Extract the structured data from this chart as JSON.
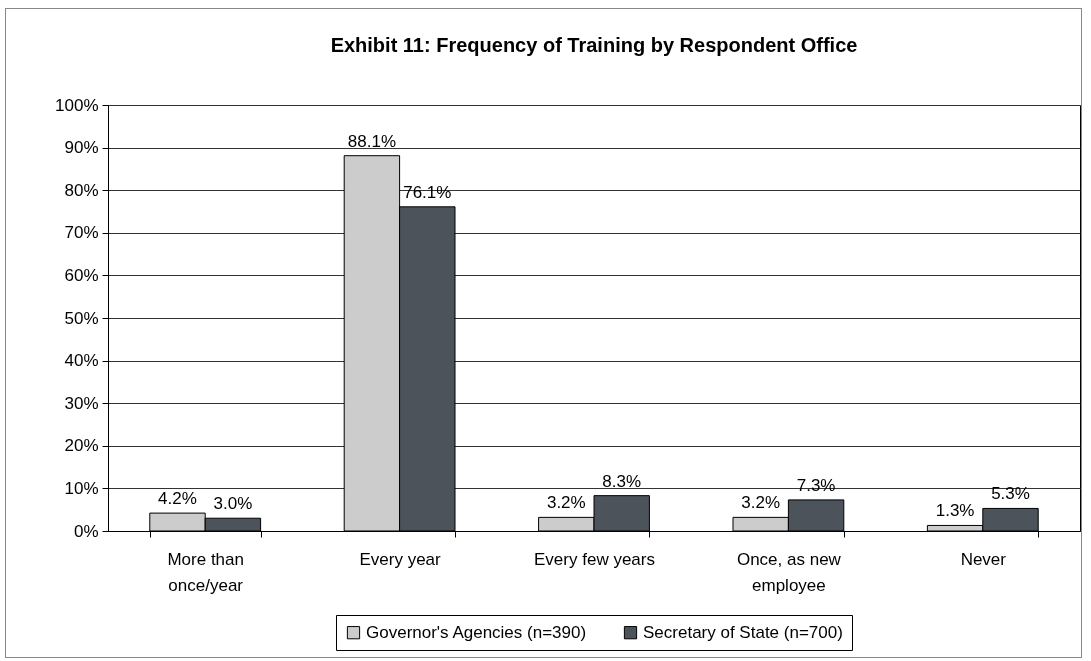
{
  "chart_data": {
    "type": "bar",
    "title": "Exhibit 11: Frequency of Training by Respondent Office",
    "categories": [
      "More than once/year",
      "Every year",
      "Every few years",
      "Once, as new employee",
      "Never"
    ],
    "series": [
      {
        "name": "Governor's Agencies (n=390)",
        "color": "#cccccc",
        "values": [
          4.2,
          88.1,
          3.2,
          3.2,
          1.3
        ],
        "value_labels": [
          "4.2%",
          "88.1%",
          "3.2%",
          "3.2%",
          "1.3%"
        ]
      },
      {
        "name": "Secretary of State (n=700)",
        "color": "#4d535b",
        "values": [
          3.0,
          76.1,
          8.3,
          7.3,
          5.3
        ],
        "value_labels": [
          "3.0%",
          "76.1%",
          "8.3%",
          "7.3%",
          "5.3%"
        ]
      }
    ],
    "ylim": [
      0,
      100
    ],
    "yticks": [
      {
        "value": 0,
        "label": "0%"
      },
      {
        "value": 10,
        "label": "10%"
      },
      {
        "value": 20,
        "label": "20%"
      },
      {
        "value": 30,
        "label": "30%"
      },
      {
        "value": 40,
        "label": "40%"
      },
      {
        "value": 50,
        "label": "50%"
      },
      {
        "value": 60,
        "label": "60%"
      },
      {
        "value": 70,
        "label": "70%"
      },
      {
        "value": 80,
        "label": "80%"
      },
      {
        "value": 90,
        "label": "90%"
      },
      {
        "value": 100,
        "label": "100%"
      }
    ],
    "grid": "y",
    "legend": "bottom"
  }
}
